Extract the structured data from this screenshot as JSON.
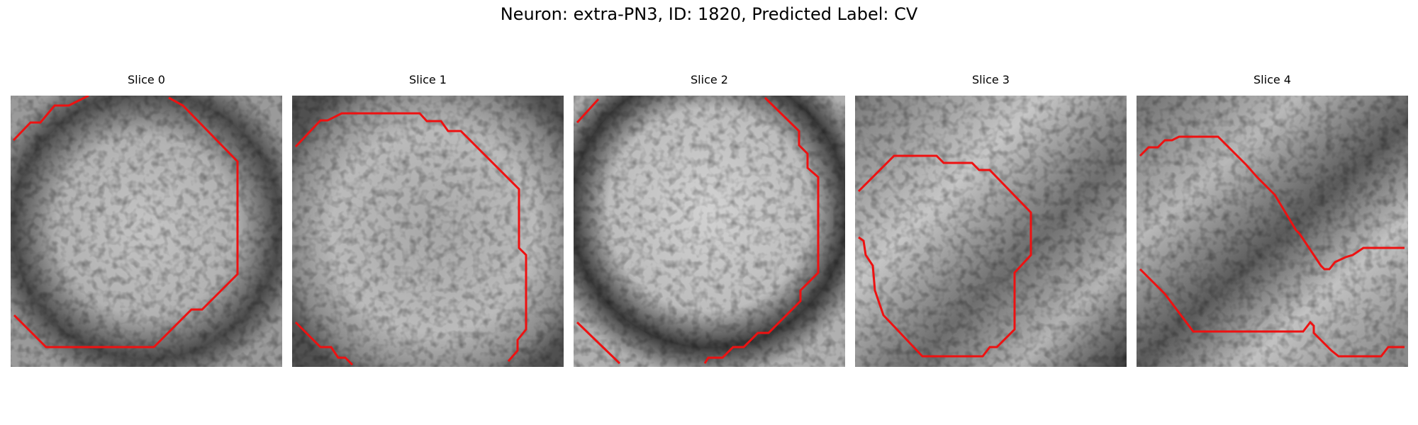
{
  "figure": {
    "title": "Neuron: extra-PN3, ID: 1820, Predicted Label: CV"
  },
  "panels": [
    {
      "title": "Slice 0"
    },
    {
      "title": "Slice 1"
    },
    {
      "title": "Slice 2"
    },
    {
      "title": "Slice 3"
    },
    {
      "title": "Slice 4"
    }
  ],
  "colors": {
    "contour": "#ee1111",
    "background": "#ffffff"
  }
}
